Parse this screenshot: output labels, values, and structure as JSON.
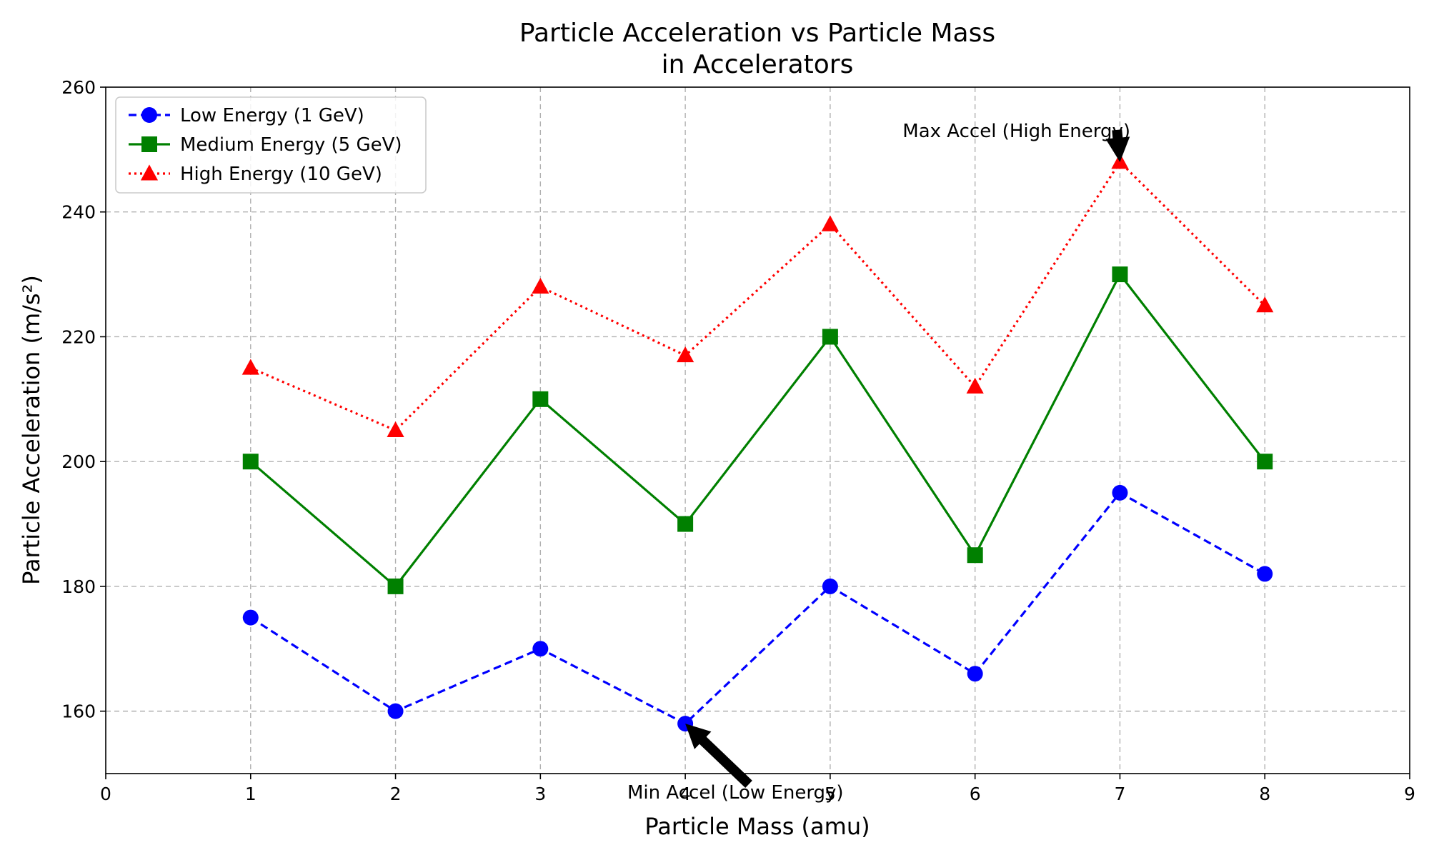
{
  "chart_data": {
    "type": "line",
    "title_lines": [
      "Particle Acceleration vs Particle Mass",
      "in Accelerators"
    ],
    "xlabel": "Particle Mass (amu)",
    "ylabel": "Particle Acceleration (m/s²)",
    "xlim": [
      0,
      9
    ],
    "ylim": [
      150,
      260
    ],
    "xticks": [
      0,
      1,
      2,
      3,
      4,
      5,
      6,
      7,
      8,
      9
    ],
    "yticks": [
      160,
      180,
      200,
      220,
      240,
      260
    ],
    "grid": true,
    "legend_position": "top-left",
    "x": [
      1,
      2,
      3,
      4,
      5,
      6,
      7,
      8
    ],
    "series": [
      {
        "name": "Low Energy (1 GeV)",
        "values": [
          175,
          160,
          170,
          158,
          180,
          166,
          195,
          182
        ],
        "color": "#0000ff",
        "line_style": "dashed",
        "marker": "circle"
      },
      {
        "name": "Medium Energy (5 GeV)",
        "values": [
          200,
          180,
          210,
          190,
          220,
          185,
          230,
          200
        ],
        "color": "#008000",
        "line_style": "solid",
        "marker": "square"
      },
      {
        "name": "High Energy (10 GeV)",
        "values": [
          215,
          205,
          228,
          217,
          238,
          212,
          248,
          225
        ],
        "color": "#ff0000",
        "line_style": "dotted",
        "marker": "triangle"
      }
    ],
    "annotations": [
      {
        "text": "Max Accel (High Energy)",
        "point": [
          7,
          248
        ],
        "text_pos": [
          5.5,
          252
        ]
      },
      {
        "text": "Min Accel (Low Energy)",
        "point": [
          4,
          158
        ],
        "text_pos": [
          3.6,
          146
        ]
      }
    ]
  }
}
